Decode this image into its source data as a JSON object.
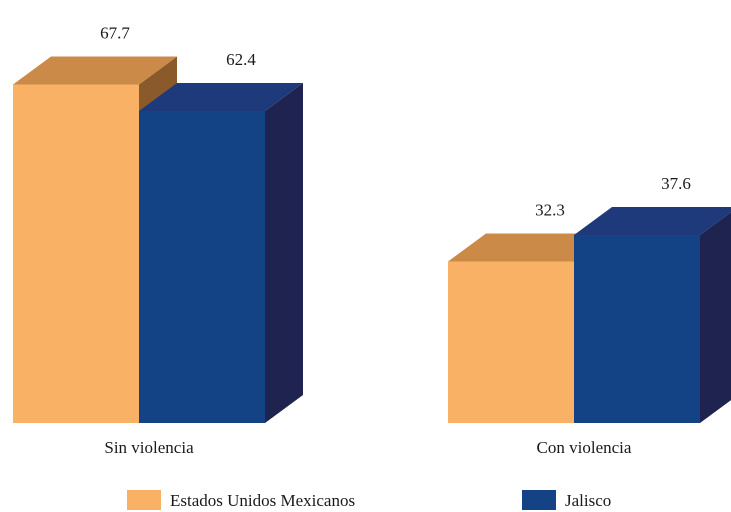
{
  "chart_data": {
    "type": "bar",
    "categories": [
      "Sin violencia",
      "Con violencia"
    ],
    "series": [
      {
        "name": "Estados Unidos Mexicanos",
        "values": [
          67.7,
          32.3
        ],
        "labels": [
          "67.7",
          "32.3"
        ],
        "color": "#F9B265",
        "top_color": "#CC8A48",
        "side_color": "#8A5A2B"
      },
      {
        "name": "Jalisco",
        "values": [
          62.4,
          37.6
        ],
        "labels": [
          "62.4",
          "37.6"
        ],
        "color": "#134385",
        "top_color": "#1F3A7A",
        "side_color": "#1E2350"
      }
    ],
    "title": "",
    "xlabel": "",
    "ylabel": "",
    "ylim": [
      0,
      70
    ],
    "grid": false,
    "legend_position": "bottom"
  }
}
